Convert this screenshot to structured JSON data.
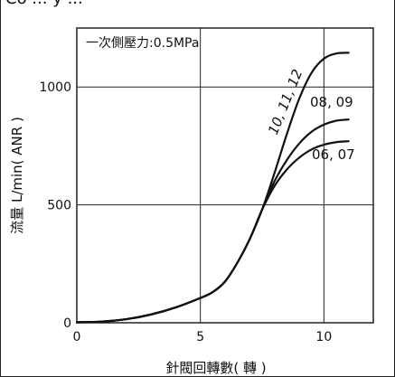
{
  "header_fragment": "Co ... y  ... ",
  "chart_data": {
    "type": "line",
    "title": "",
    "subtitle": "一次側壓力:0.5MPa",
    "xlabel": "針閥回轉數( 轉 )",
    "ylabel": "流量 L/min( ANR )",
    "xlim": [
      0,
      12
    ],
    "ylim": [
      0,
      1250
    ],
    "x_ticks": [
      0,
      5,
      10
    ],
    "y_ticks": [
      0,
      500,
      1000
    ],
    "grid": true,
    "colors": {
      "line": "#111111",
      "grid": "#222222",
      "frame": "#222222"
    },
    "series": [
      {
        "name": "10, 11, 12",
        "points": [
          [
            0,
            2
          ],
          [
            1,
            5
          ],
          [
            2,
            15
          ],
          [
            3,
            35
          ],
          [
            4,
            65
          ],
          [
            5,
            105
          ],
          [
            5.5,
            130
          ],
          [
            6,
            175
          ],
          [
            6.5,
            255
          ],
          [
            7,
            355
          ],
          [
            7.5,
            480
          ],
          [
            8,
            635
          ],
          [
            8.5,
            800
          ],
          [
            9,
            950
          ],
          [
            9.5,
            1060
          ],
          [
            10,
            1120
          ],
          [
            10.5,
            1142
          ],
          [
            11,
            1145
          ]
        ]
      },
      {
        "name": "08, 09",
        "points": [
          [
            0,
            2
          ],
          [
            1,
            5
          ],
          [
            2,
            15
          ],
          [
            3,
            35
          ],
          [
            4,
            65
          ],
          [
            5,
            105
          ],
          [
            5.5,
            130
          ],
          [
            6,
            175
          ],
          [
            6.5,
            255
          ],
          [
            7,
            355
          ],
          [
            7.5,
            480
          ],
          [
            8,
            600
          ],
          [
            8.5,
            690
          ],
          [
            9,
            760
          ],
          [
            9.5,
            810
          ],
          [
            10,
            840
          ],
          [
            10.5,
            857
          ],
          [
            11,
            862
          ]
        ]
      },
      {
        "name": "06, 07",
        "points": [
          [
            0,
            2
          ],
          [
            1,
            5
          ],
          [
            2,
            15
          ],
          [
            3,
            35
          ],
          [
            4,
            65
          ],
          [
            5,
            105
          ],
          [
            5.5,
            130
          ],
          [
            6,
            175
          ],
          [
            6.5,
            255
          ],
          [
            7,
            355
          ],
          [
            7.5,
            480
          ],
          [
            8,
            580
          ],
          [
            8.5,
            650
          ],
          [
            9,
            700
          ],
          [
            9.5,
            735
          ],
          [
            10,
            755
          ],
          [
            10.5,
            766
          ],
          [
            11,
            770
          ]
        ]
      }
    ]
  }
}
